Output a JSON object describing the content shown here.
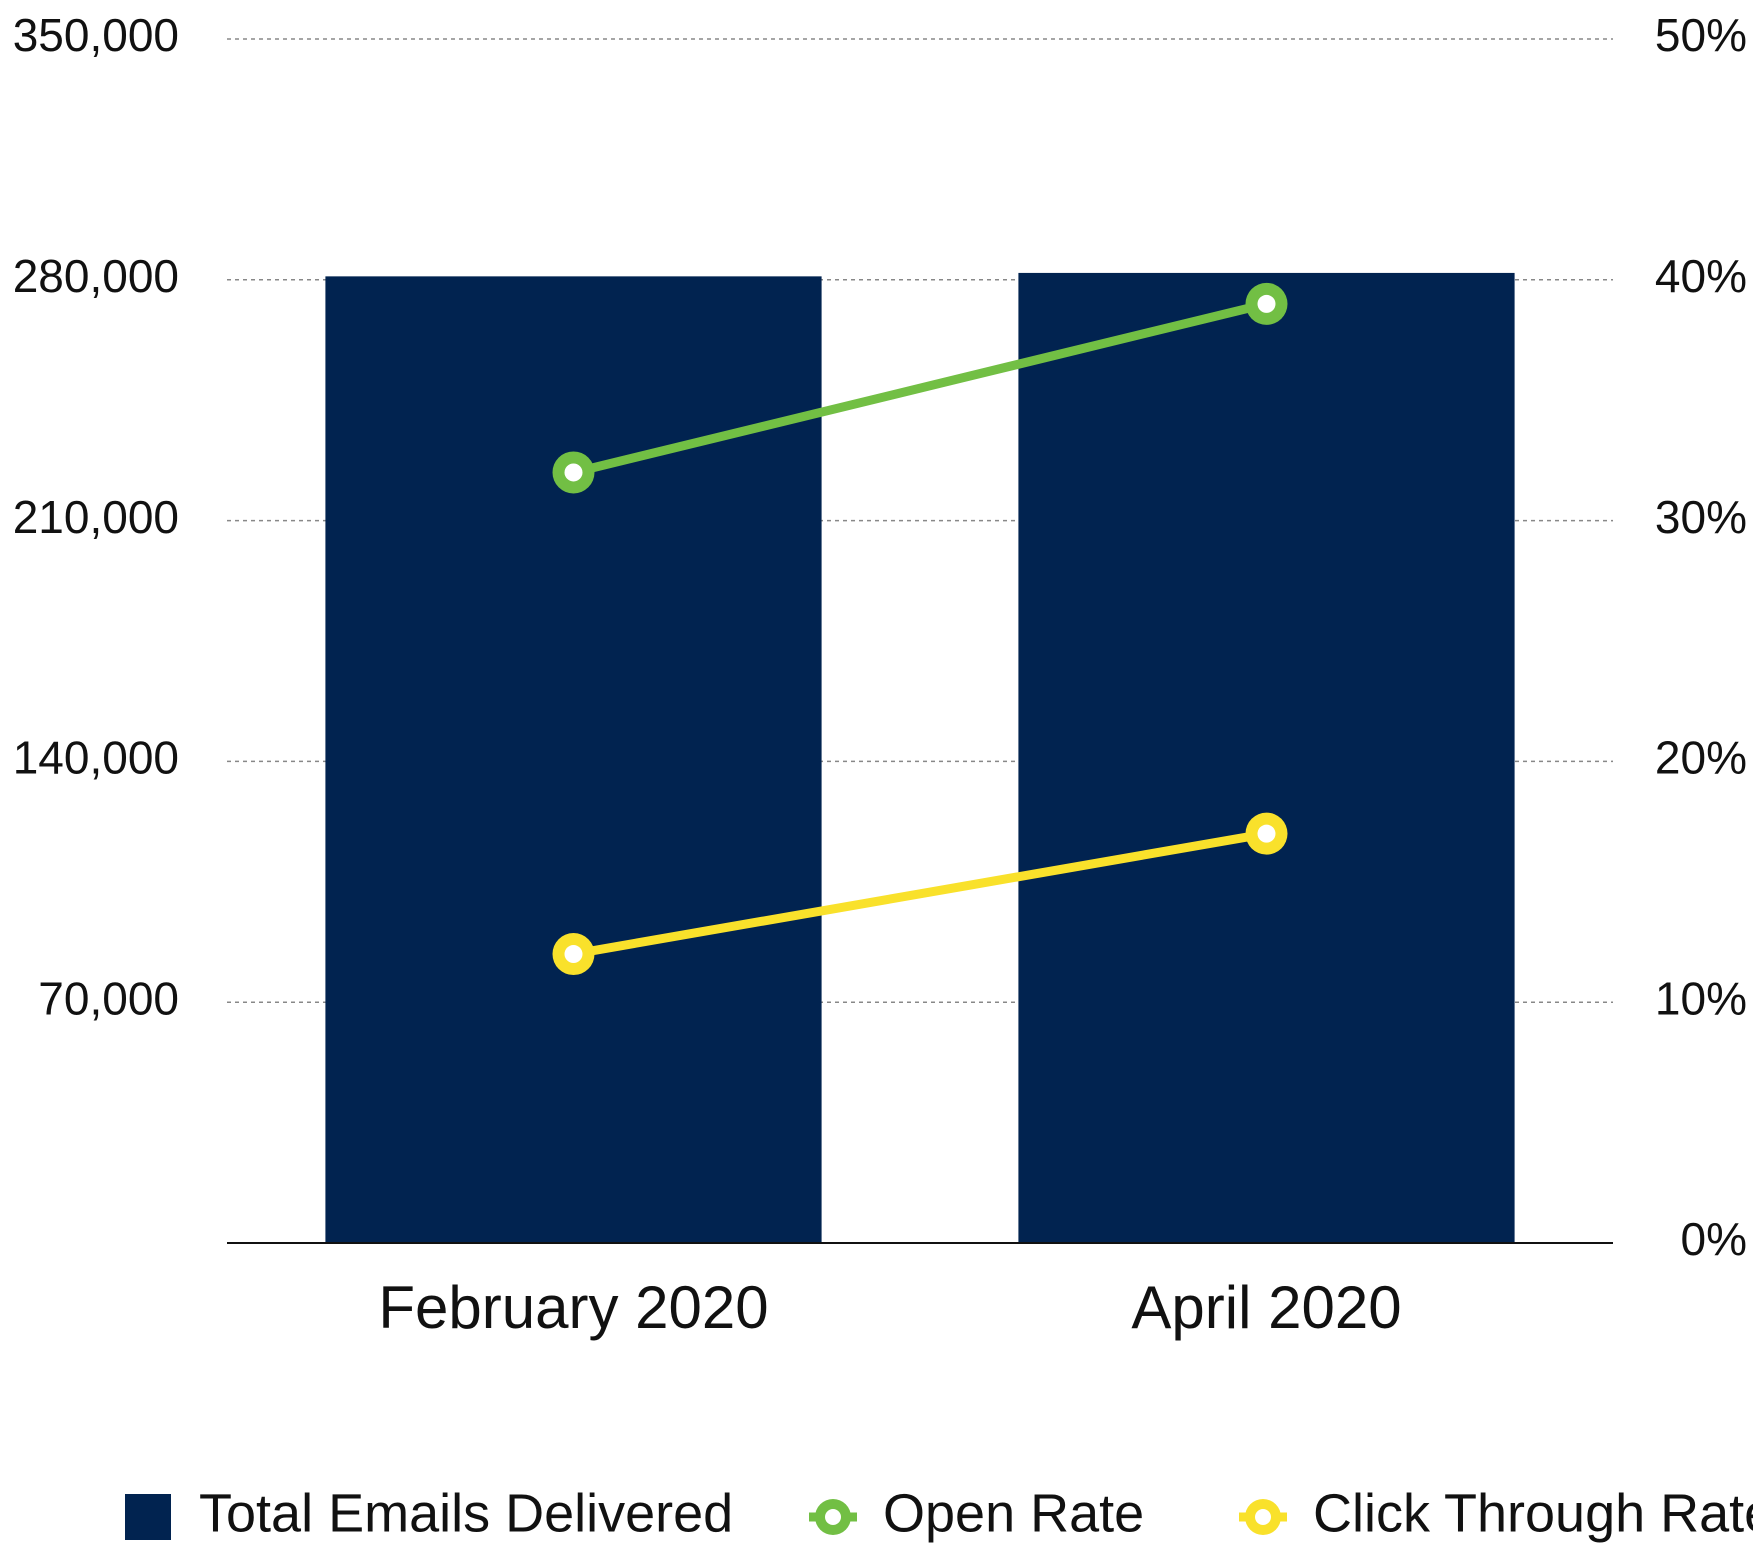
{
  "chart_data": {
    "type": "bar-line",
    "categories": [
      "February 2020",
      "April 2020"
    ],
    "series": [
      {
        "name": "Total Emails Delivered",
        "type": "bar",
        "color": "#012350",
        "axis": "y",
        "values": [
          281000,
          282000
        ]
      },
      {
        "name": "Open Rate",
        "type": "line",
        "color": "#72bf44",
        "axis": "y2",
        "values": [
          32,
          39
        ]
      },
      {
        "name": "Click Through Rate",
        "type": "line",
        "color": "#f9e12b",
        "axis": "y2",
        "values": [
          12,
          17
        ]
      }
    ],
    "ylim": [
      0,
      350000
    ],
    "yticks": [
      {
        "value": 70000,
        "label": "70,000"
      },
      {
        "value": 140000,
        "label": "140,000"
      },
      {
        "value": 210000,
        "label": "210,000"
      },
      {
        "value": 280000,
        "label": "280,000"
      },
      {
        "value": 350000,
        "label": "350,000"
      }
    ],
    "y2lim": [
      0,
      50
    ],
    "y2ticks": [
      {
        "value": 0,
        "label": "0%"
      },
      {
        "value": 10,
        "label": "10%"
      },
      {
        "value": 20,
        "label": "20%"
      },
      {
        "value": 30,
        "label": "30%"
      },
      {
        "value": 40,
        "label": "40%"
      },
      {
        "value": 50,
        "label": "50%"
      }
    ],
    "grid": true,
    "legend": "bottom"
  }
}
